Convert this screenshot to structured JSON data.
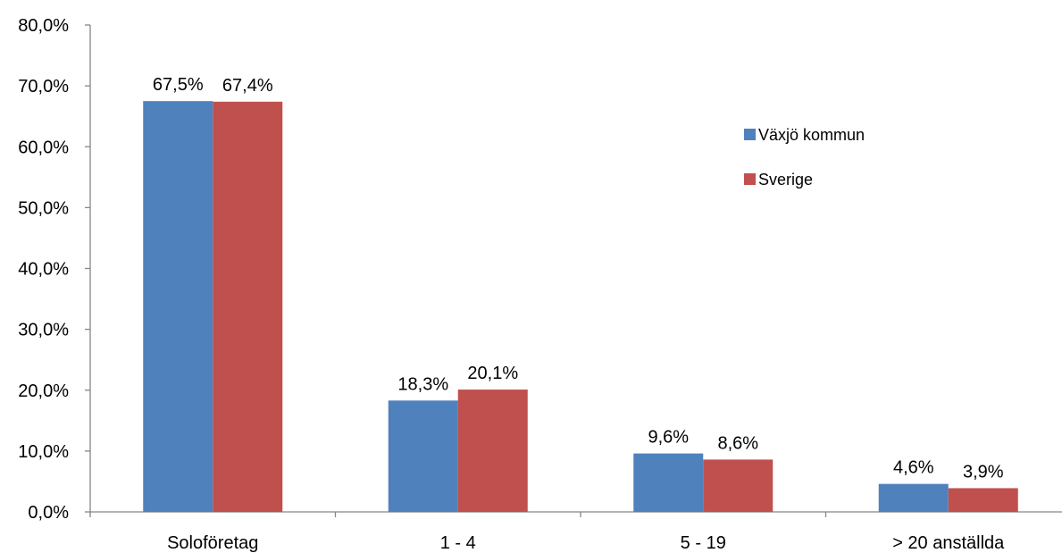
{
  "chart_data": {
    "type": "bar",
    "categories": [
      "Soloföretag",
      "1 - 4",
      "5 - 19",
      "> 20 anställda"
    ],
    "series": [
      {
        "name": "Växjö kommun",
        "color": "#4F81BD",
        "values": [
          67.5,
          18.3,
          9.6,
          4.6
        ],
        "labels": [
          "67,5%",
          "18,3%",
          "9,6%",
          "4,6%"
        ]
      },
      {
        "name": "Sverige",
        "color": "#C0504D",
        "values": [
          67.4,
          20.1,
          8.6,
          3.9
        ],
        "labels": [
          "67,4%",
          "20,1%",
          "8,6%",
          "3,9%"
        ]
      }
    ],
    "ylim": [
      0,
      80
    ],
    "yticks": [
      0,
      10,
      20,
      30,
      40,
      50,
      60,
      70,
      80
    ],
    "ytick_labels": [
      "0,0%",
      "10,0%",
      "20,0%",
      "30,0%",
      "40,0%",
      "50,0%",
      "60,0%",
      "70,0%",
      "80,0%"
    ],
    "title": "",
    "xlabel": "",
    "ylabel": "",
    "grid": false,
    "legend": "right"
  }
}
